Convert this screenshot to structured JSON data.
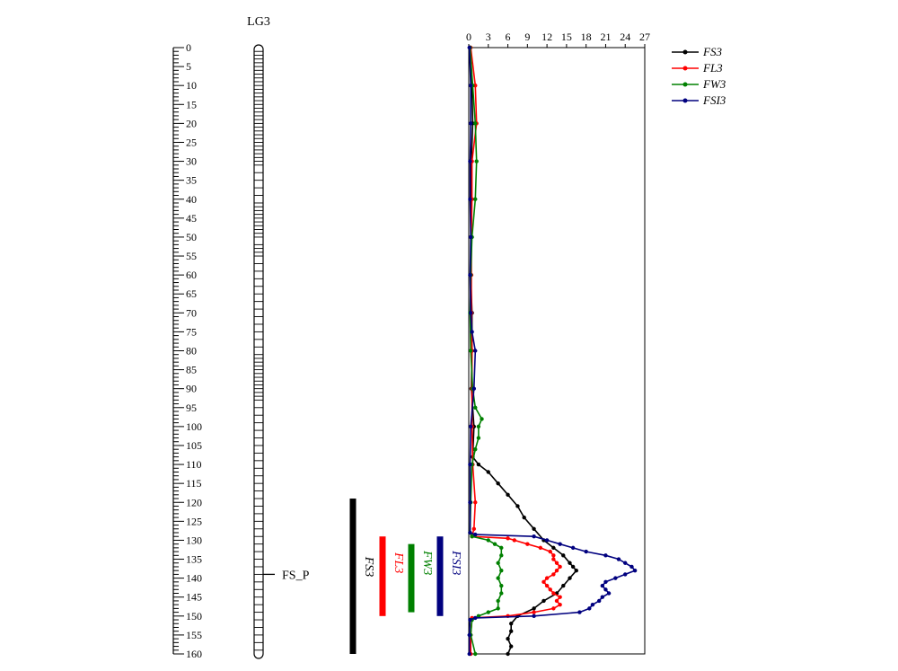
{
  "chart_data": {
    "type": "line",
    "linkage_group": "LG3",
    "marker_label": "FS_P",
    "marker_position_cm": 139,
    "cm_axis": {
      "min": 0,
      "max": 160,
      "ticks": [
        0,
        5,
        10,
        15,
        20,
        25,
        30,
        35,
        40,
        45,
        50,
        55,
        60,
        65,
        70,
        75,
        80,
        85,
        90,
        95,
        100,
        105,
        110,
        115,
        120,
        125,
        130,
        135,
        140,
        145,
        150,
        155,
        160
      ]
    },
    "lod_axis": {
      "min": 0,
      "max": 27,
      "ticks": [
        0,
        3,
        6,
        9,
        12,
        15,
        18,
        21,
        24,
        27
      ]
    },
    "chromosome_bands_cm": [
      1,
      2,
      3,
      4,
      5,
      6,
      7,
      8,
      9,
      10,
      11,
      12,
      13,
      14,
      15,
      16,
      17,
      18,
      19,
      20,
      21,
      22,
      23,
      24,
      25,
      26,
      27,
      28,
      29,
      30,
      31,
      33,
      35,
      37,
      39,
      41,
      42,
      43,
      44,
      45,
      46,
      47,
      48,
      49,
      50,
      52,
      53,
      54,
      55,
      57,
      59,
      61,
      63,
      65,
      67,
      69,
      71,
      73,
      75,
      77,
      79,
      81,
      82,
      83,
      84,
      85,
      86,
      87,
      88,
      89,
      90,
      91,
      92,
      93,
      95,
      97,
      99,
      101,
      103,
      105,
      107,
      109,
      111,
      113,
      115,
      117,
      119,
      121,
      123,
      125,
      127,
      129,
      131,
      133,
      135,
      137,
      139,
      141,
      143,
      145,
      147,
      149,
      151,
      153,
      155,
      157,
      159
    ],
    "series": [
      {
        "name": "FS3",
        "color": "#000000",
        "points": [
          [
            0,
            0.2
          ],
          [
            10,
            0.5
          ],
          [
            20,
            0.6
          ],
          [
            30,
            0.4
          ],
          [
            40,
            0.3
          ],
          [
            50,
            0.4
          ],
          [
            60,
            0.3
          ],
          [
            70,
            0.5
          ],
          [
            80,
            0.5
          ],
          [
            90,
            0.4
          ],
          [
            100,
            0.8
          ],
          [
            108,
            0.6
          ],
          [
            110,
            1.5
          ],
          [
            112,
            3
          ],
          [
            115,
            4.5
          ],
          [
            118,
            6
          ],
          [
            121,
            7.5
          ],
          [
            124,
            8.5
          ],
          [
            127,
            10
          ],
          [
            130,
            11.5
          ],
          [
            132,
            13
          ],
          [
            134,
            14.5
          ],
          [
            136,
            15.5
          ],
          [
            137,
            16
          ],
          [
            138,
            16.5
          ],
          [
            140,
            15.5
          ],
          [
            142,
            14.5
          ],
          [
            144,
            13.5
          ],
          [
            146,
            11.5
          ],
          [
            148,
            10
          ],
          [
            150,
            7.5
          ],
          [
            152,
            6.5
          ],
          [
            154,
            6.5
          ],
          [
            156,
            6
          ],
          [
            158,
            6.5
          ],
          [
            160,
            6
          ]
        ]
      },
      {
        "name": "FL3",
        "color": "#ff0000",
        "points": [
          [
            0,
            0.3
          ],
          [
            10,
            1
          ],
          [
            20,
            1.2
          ],
          [
            30,
            0.5
          ],
          [
            40,
            0.5
          ],
          [
            50,
            0.4
          ],
          [
            60,
            0.4
          ],
          [
            70,
            0.4
          ],
          [
            80,
            0.5
          ],
          [
            90,
            0.5
          ],
          [
            100,
            0.5
          ],
          [
            110,
            0.6
          ],
          [
            120,
            1
          ],
          [
            127,
            0.8
          ],
          [
            129,
            0.5
          ],
          [
            129.5,
            6
          ],
          [
            130,
            7
          ],
          [
            131,
            9
          ],
          [
            132,
            11
          ],
          [
            133,
            12.5
          ],
          [
            134,
            13
          ],
          [
            135,
            13
          ],
          [
            136,
            13.5
          ],
          [
            137,
            14
          ],
          [
            138,
            13.5
          ],
          [
            139,
            13
          ],
          [
            140,
            12
          ],
          [
            141,
            11.5
          ],
          [
            142,
            12
          ],
          [
            143,
            12.5
          ],
          [
            144,
            13
          ],
          [
            145,
            14
          ],
          [
            146,
            13.5
          ],
          [
            147,
            14
          ],
          [
            148,
            13
          ],
          [
            149,
            10
          ],
          [
            150,
            6
          ],
          [
            150.5,
            0.5
          ],
          [
            155,
            0.3
          ],
          [
            160,
            0.3
          ]
        ]
      },
      {
        "name": "FW3",
        "color": "#008000",
        "points": [
          [
            0,
            0.2
          ],
          [
            10,
            0.6
          ],
          [
            20,
            1
          ],
          [
            30,
            1.2
          ],
          [
            40,
            1
          ],
          [
            50,
            0.5
          ],
          [
            60,
            0.3
          ],
          [
            70,
            0.2
          ],
          [
            80,
            0.3
          ],
          [
            90,
            0.6
          ],
          [
            95,
            1
          ],
          [
            98,
            2
          ],
          [
            100,
            1.5
          ],
          [
            103,
            1.5
          ],
          [
            106,
            1
          ],
          [
            110,
            0.5
          ],
          [
            120,
            0.3
          ],
          [
            128,
            0.2
          ],
          [
            129,
            0.5
          ],
          [
            130,
            3
          ],
          [
            131,
            4
          ],
          [
            132,
            5
          ],
          [
            134,
            5
          ],
          [
            136,
            4.5
          ],
          [
            138,
            5
          ],
          [
            140,
            4.5
          ],
          [
            142,
            5
          ],
          [
            144,
            5
          ],
          [
            146,
            4.5
          ],
          [
            148,
            4.5
          ],
          [
            149,
            3
          ],
          [
            150,
            1.5
          ],
          [
            151,
            0.5
          ],
          [
            155,
            0.3
          ],
          [
            160,
            1
          ]
        ]
      },
      {
        "name": "FSI3",
        "color": "#00007f",
        "points": [
          [
            0,
            0.1
          ],
          [
            10,
            0.3
          ],
          [
            20,
            0.3
          ],
          [
            30,
            0.2
          ],
          [
            40,
            0.2
          ],
          [
            50,
            0.3
          ],
          [
            60,
            0.2
          ],
          [
            70,
            0.3
          ],
          [
            75,
            0.5
          ],
          [
            80,
            1
          ],
          [
            90,
            0.8
          ],
          [
            100,
            0.3
          ],
          [
            110,
            0.2
          ],
          [
            120,
            0.2
          ],
          [
            128,
            0.2
          ],
          [
            128.5,
            1
          ],
          [
            129,
            10
          ],
          [
            130,
            12
          ],
          [
            131,
            14
          ],
          [
            132,
            16
          ],
          [
            133,
            18
          ],
          [
            134,
            21
          ],
          [
            135,
            23
          ],
          [
            136,
            24
          ],
          [
            137,
            25
          ],
          [
            138,
            25.5
          ],
          [
            139,
            24
          ],
          [
            140,
            22.5
          ],
          [
            141,
            21
          ],
          [
            142,
            20.5
          ],
          [
            143,
            21
          ],
          [
            144,
            21.5
          ],
          [
            145,
            20.5
          ],
          [
            146,
            20
          ],
          [
            147,
            19
          ],
          [
            148,
            18.5
          ],
          [
            149,
            17
          ],
          [
            150,
            10
          ],
          [
            150.5,
            1
          ],
          [
            151,
            0.2
          ],
          [
            155,
            0.1
          ],
          [
            160,
            0.1
          ]
        ]
      }
    ],
    "qtl_intervals": [
      {
        "name": "FS3",
        "color": "#000000",
        "start_cm": 119,
        "end_cm": 160
      },
      {
        "name": "FL3",
        "color": "#ff0000",
        "start_cm": 129,
        "end_cm": 150
      },
      {
        "name": "FW3",
        "color": "#008000",
        "start_cm": 131,
        "end_cm": 149
      },
      {
        "name": "FSI3",
        "color": "#00007f",
        "start_cm": 129,
        "end_cm": 150
      }
    ],
    "legend": [
      "FS3",
      "FL3",
      "FW3",
      "FSI3"
    ],
    "legend_position": "top-right"
  }
}
